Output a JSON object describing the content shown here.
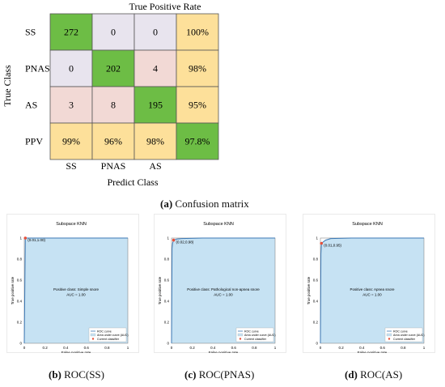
{
  "confusion_matrix": {
    "top_label": "True Positive Rate",
    "y_label": "True Class",
    "x_label": "Predict Class",
    "row_labels": [
      "SS",
      "PNAS",
      "AS",
      "PPV"
    ],
    "col_labels": [
      "SS",
      "PNAS",
      "AS"
    ],
    "cells": [
      [
        "272",
        "0",
        "0",
        "100%"
      ],
      [
        "0",
        "202",
        "4",
        "98%"
      ],
      [
        "3",
        "8",
        "195",
        "95%"
      ],
      [
        "99%",
        "96%",
        "98%",
        "97.8%"
      ]
    ],
    "colors": {
      "correct": "#6dbd45",
      "zero": "#e8e4ee",
      "error": "#f2d9d5",
      "rate": "#fde09a",
      "overall": "#6dbd45",
      "grid": "#555555"
    },
    "caption_letter": "(a)",
    "caption_text": "Confusion matrix"
  },
  "chart_data": [
    {
      "type": "line",
      "title": "Subspace KNN",
      "xlabel": "False positive rate",
      "ylabel": "True positive rate",
      "xlim": [
        0,
        1
      ],
      "ylim": [
        0,
        1
      ],
      "xticks": [
        "0",
        "0.2",
        "0.4",
        "0.6",
        "0.8",
        "1"
      ],
      "yticks": [
        "0",
        "0.2",
        "0.4",
        "0.6",
        "0.8",
        "1"
      ],
      "series": [
        {
          "name": "ROC curve",
          "x": [
            0,
            0.01,
            1
          ],
          "y": [
            0,
            1.0,
            1.0
          ]
        }
      ],
      "area_label": "Area under curve (AUC)",
      "current_classifier": {
        "name": "Current classifier",
        "x": 0.01,
        "y": 1.0,
        "label": "(0.01,1.00)"
      },
      "annotation": [
        "Positive class: Simple snore",
        "AUC = 1.00"
      ],
      "caption_letter": "(b)",
      "caption_text": "ROC(SS)"
    },
    {
      "type": "line",
      "title": "Subspace KNN",
      "xlabel": "False positive rate",
      "ylabel": "True positive rate",
      "xlim": [
        0,
        1
      ],
      "ylim": [
        0,
        1
      ],
      "xticks": [
        "0",
        "0.2",
        "0.4",
        "0.6",
        "0.8",
        "1"
      ],
      "yticks": [
        "0",
        "0.2",
        "0.4",
        "0.6",
        "0.8",
        "1"
      ],
      "series": [
        {
          "name": "ROC curve",
          "x": [
            0,
            0.005,
            0.01,
            0.02,
            0.05,
            0.1,
            0.3,
            1
          ],
          "y": [
            0,
            0.9,
            0.95,
            0.98,
            0.99,
            0.995,
            1.0,
            1.0
          ]
        }
      ],
      "area_label": "Area under curve (AUC)",
      "current_classifier": {
        "name": "Current classifier",
        "x": 0.02,
        "y": 0.98,
        "label": "(0.02,0.98)"
      },
      "annotation": [
        "Positive class: Pathological non-apnea snore",
        "AUC = 1.00"
      ],
      "caption_letter": "(c)",
      "caption_text": "ROC(PNAS)"
    },
    {
      "type": "line",
      "title": "Subspace KNN",
      "xlabel": "False positive rate",
      "ylabel": "True positive rate",
      "xlim": [
        0,
        1
      ],
      "ylim": [
        0,
        1
      ],
      "xticks": [
        "0",
        "0.2",
        "0.4",
        "0.6",
        "0.8",
        "1"
      ],
      "yticks": [
        "0",
        "0.2",
        "0.4",
        "0.6",
        "0.8",
        "1"
      ],
      "series": [
        {
          "name": "ROC curve",
          "x": [
            0,
            0.005,
            0.01,
            0.05,
            0.1,
            0.3,
            1
          ],
          "y": [
            0,
            0.85,
            0.95,
            0.98,
            0.995,
            1.0,
            1.0
          ]
        }
      ],
      "area_label": "Area under curve (AUC)",
      "current_classifier": {
        "name": "Current classifier",
        "x": 0.01,
        "y": 0.95,
        "label": "(0.01,0.95)"
      },
      "annotation": [
        "Positive class: Apnea snore",
        "AUC = 1.00"
      ],
      "caption_letter": "(d)",
      "caption_text": "ROC(AS)"
    }
  ],
  "roc_style": {
    "curve_color": "#3c78b4",
    "area_color": "#c6e2f3",
    "marker_color": "#e8503a"
  }
}
